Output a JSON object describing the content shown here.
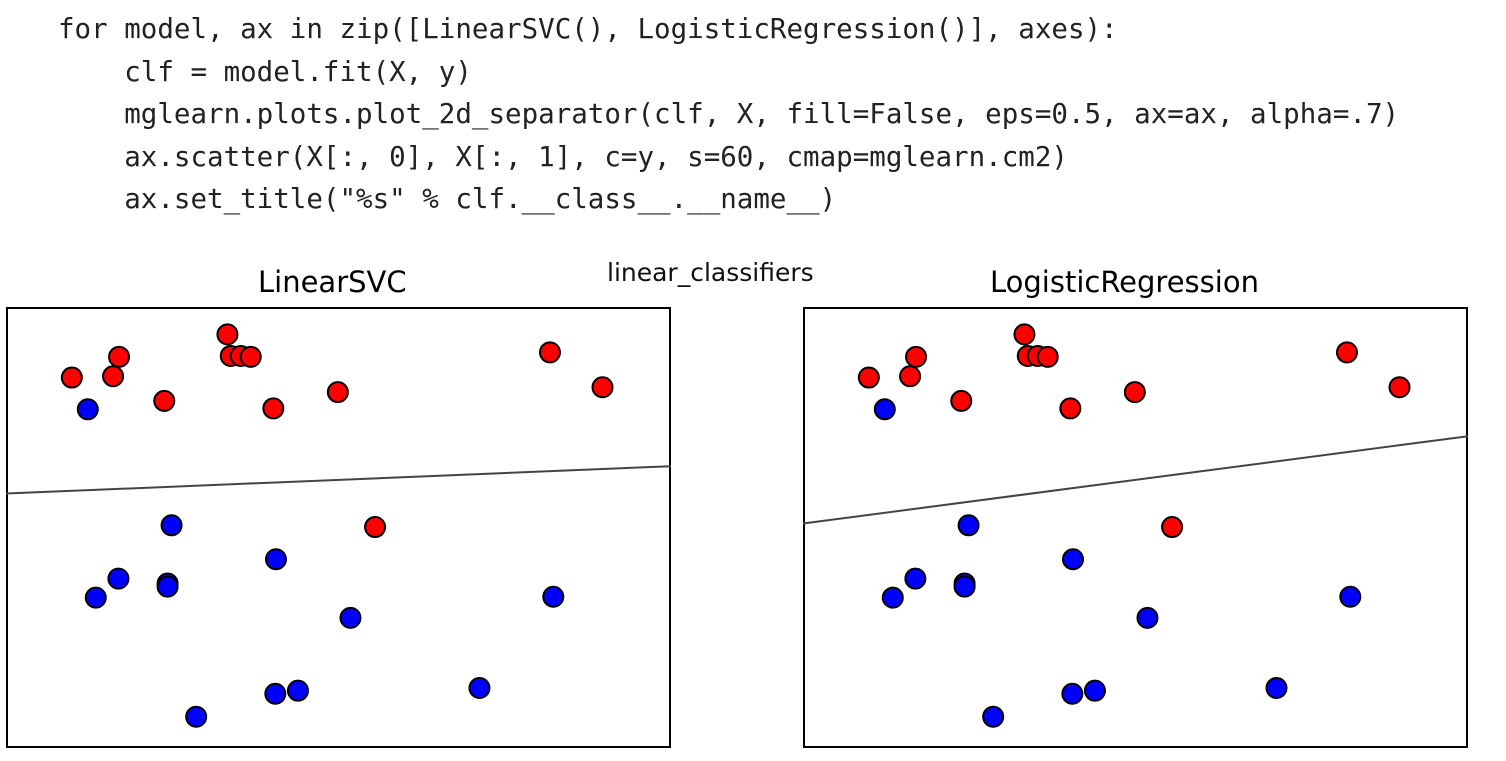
{
  "code": {
    "lines": [
      "for model, ax in zip([LinearSVC(), LogisticRegression()], axes):",
      "    clf = model.fit(X, y)",
      "    mglearn.plots.plot_2d_separator(clf, X, fill=False, eps=0.5, ax=ax, alpha=.7)",
      "    ax.scatter(X[:, 0], X[:, 1], c=y, s=60, cmap=mglearn.cm2)",
      "    ax.set_title(\"%s\" % clf.__class__.__name__)"
    ]
  },
  "figure_label": "linear_classifiers",
  "colors": {
    "class_0": "#0000ff",
    "class_1": "#ff0000",
    "boundary": "#444444",
    "axes": "#000000"
  },
  "chart_data": [
    {
      "type": "scatter",
      "title": "LinearSVC",
      "xlabel": "",
      "ylabel": "",
      "xlim": [
        0,
        100
      ],
      "ylim": [
        0,
        100
      ],
      "ticks": false,
      "grid": false,
      "series": [
        {
          "label": 1,
          "color": "#ff0000",
          "points": [
            [
              9.9,
              84.0
            ],
            [
              17.0,
              88.7
            ],
            [
              16.1,
              84.3
            ],
            [
              33.3,
              93.8
            ],
            [
              33.8,
              88.9
            ],
            [
              35.3,
              88.9
            ],
            [
              36.8,
              88.7
            ],
            [
              23.8,
              78.7
            ],
            [
              40.2,
              77.0
            ],
            [
              49.9,
              80.7
            ],
            [
              81.8,
              89.7
            ],
            [
              89.7,
              81.8
            ],
            [
              55.5,
              50.1
            ]
          ]
        },
        {
          "label": 0,
          "color": "#0000ff",
          "points": [
            [
              12.3,
              76.8
            ],
            [
              24.9,
              50.5
            ],
            [
              40.6,
              42.8
            ],
            [
              16.9,
              38.4
            ],
            [
              24.3,
              37.3
            ],
            [
              24.3,
              36.6
            ],
            [
              13.5,
              34.1
            ],
            [
              51.8,
              29.5
            ],
            [
              82.3,
              34.3
            ],
            [
              40.5,
              12.3
            ],
            [
              43.9,
              13.0
            ],
            [
              71.2,
              13.6
            ],
            [
              28.6,
              7.1
            ]
          ]
        }
      ],
      "decision_boundary": [
        [
          0,
          57.7
        ],
        [
          100,
          63.9
        ]
      ]
    },
    {
      "type": "scatter",
      "title": "LogisticRegression",
      "xlabel": "",
      "ylabel": "",
      "xlim": [
        0,
        100
      ],
      "ylim": [
        0,
        100
      ],
      "ticks": false,
      "grid": false,
      "series": [
        {
          "label": 1,
          "color": "#ff0000",
          "points": [
            [
              9.9,
              84.0
            ],
            [
              17.0,
              88.7
            ],
            [
              16.1,
              84.3
            ],
            [
              33.3,
              93.8
            ],
            [
              33.8,
              88.9
            ],
            [
              35.3,
              88.9
            ],
            [
              36.8,
              88.7
            ],
            [
              23.8,
              78.7
            ],
            [
              40.2,
              77.0
            ],
            [
              49.9,
              80.7
            ],
            [
              81.8,
              89.7
            ],
            [
              89.7,
              81.8
            ],
            [
              55.5,
              50.1
            ]
          ]
        },
        {
          "label": 0,
          "color": "#0000ff",
          "points": [
            [
              12.3,
              76.8
            ],
            [
              24.9,
              50.5
            ],
            [
              40.6,
              42.8
            ],
            [
              16.9,
              38.4
            ],
            [
              24.3,
              37.3
            ],
            [
              24.3,
              36.6
            ],
            [
              13.5,
              34.1
            ],
            [
              51.8,
              29.5
            ],
            [
              82.3,
              34.3
            ],
            [
              40.5,
              12.3
            ],
            [
              43.9,
              13.0
            ],
            [
              71.2,
              13.6
            ],
            [
              28.6,
              7.1
            ]
          ]
        }
      ],
      "decision_boundary": [
        [
          0,
          50.9
        ],
        [
          100,
          70.7
        ]
      ]
    }
  ]
}
